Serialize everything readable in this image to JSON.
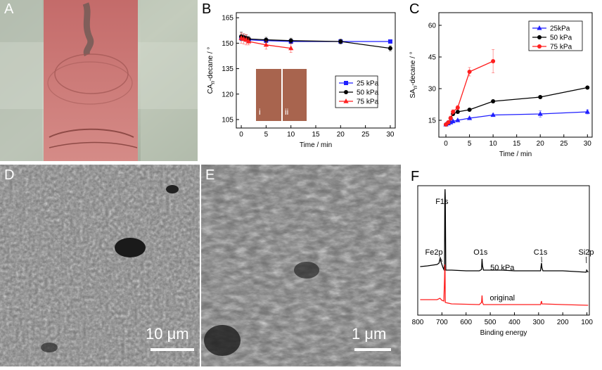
{
  "panels": {
    "a": {
      "label": "A"
    },
    "b": {
      "label": "B"
    },
    "c": {
      "label": "C"
    },
    "d": {
      "label": "D",
      "scale": "10 μm"
    },
    "e": {
      "label": "E",
      "scale": "1 μm"
    },
    "f": {
      "label": "F"
    }
  },
  "colors": {
    "s25": "#1f1fff",
    "s50": "#000000",
    "s75": "#ff1f1f",
    "orig": "#ff1f1f",
    "strip": "#c9716c",
    "inset": "#a8644e"
  },
  "chart_data": [
    {
      "id": "B",
      "type": "line",
      "xlabel": "Time / min",
      "ylabel_main": "CA",
      "ylabel_sub": "n",
      "ylabel_rest": "-decane",
      "ylabel_unit": " / °",
      "xlim": [
        -1,
        31
      ],
      "ylim": [
        100,
        168
      ],
      "xticks": [
        0,
        5,
        10,
        15,
        20,
        25,
        30
      ],
      "yticks": [
        105,
        120,
        135,
        150,
        165
      ],
      "legend_position": "right",
      "inset_labels": [
        "i",
        "ii"
      ],
      "series": [
        {
          "name": "25 kPa",
          "color": "#1f1fff",
          "marker": "square",
          "x": [
            0,
            0.5,
            1,
            1.5,
            5,
            10,
            20,
            30
          ],
          "y": [
            153,
            153,
            152.5,
            152,
            151.5,
            151,
            151,
            151
          ],
          "err": [
            1.5,
            1.5,
            1.5,
            1,
            1,
            1,
            1,
            1
          ]
        },
        {
          "name": "50 kPa",
          "color": "#000000",
          "marker": "circle",
          "x": [
            0,
            0.5,
            1,
            1.5,
            5,
            10,
            20,
            30
          ],
          "y": [
            154,
            153.5,
            153,
            152.5,
            152,
            151.5,
            151,
            147
          ],
          "err": [
            2.5,
            2,
            2,
            1.5,
            1.5,
            1.5,
            1.5,
            1.5
          ]
        },
        {
          "name": "75 kPa",
          "color": "#ff1f1f",
          "marker": "triangle",
          "x": [
            0,
            0.5,
            1,
            1.5,
            5,
            10
          ],
          "y": [
            153,
            152.5,
            152,
            151,
            149,
            147
          ],
          "err": [
            3,
            3,
            3,
            2,
            2.5,
            2.5
          ]
        }
      ]
    },
    {
      "id": "C",
      "type": "line",
      "xlabel": "Time / min",
      "ylabel_main": "SA",
      "ylabel_sub": "n",
      "ylabel_rest": "-decane",
      "ylabel_unit": " / °",
      "xlim": [
        -1.5,
        31
      ],
      "ylim": [
        7,
        66
      ],
      "xticks": [
        0,
        5,
        10,
        15,
        20,
        25,
        30
      ],
      "yticks": [
        15,
        30,
        45,
        60
      ],
      "legend_position": "top-right",
      "series": [
        {
          "name": "25kPa",
          "color": "#1f1fff",
          "marker": "triangle",
          "x": [
            0,
            0.5,
            1,
            1.5,
            2.5,
            5,
            10,
            20,
            30
          ],
          "y": [
            13,
            13.5,
            14,
            14.5,
            15,
            16,
            17.5,
            18,
            19
          ],
          "err": [
            0.5,
            0.5,
            0.5,
            0.5,
            0.5,
            0.5,
            0.5,
            1.5,
            1
          ]
        },
        {
          "name": "50  kPa",
          "color": "#000000",
          "marker": "circle",
          "x": [
            0,
            0.5,
            1,
            1.5,
            2.5,
            5,
            10,
            20,
            30
          ],
          "y": [
            13,
            14,
            16,
            18,
            19,
            20,
            24,
            26,
            30.5
          ],
          "err": [
            0.5,
            0.5,
            0.5,
            0.5,
            0.5,
            0.5,
            0.5,
            0.5,
            0.5
          ]
        },
        {
          "name": "75  kPa",
          "color": "#ff1f1f",
          "marker": "circle",
          "x": [
            0,
            0.5,
            1,
            1.5,
            2.5,
            5,
            10
          ],
          "y": [
            13,
            14,
            16,
            19,
            21,
            38,
            43
          ],
          "err": [
            0.5,
            0.5,
            1,
            1,
            1,
            2,
            5.5
          ]
        }
      ]
    },
    {
      "id": "F",
      "type": "line",
      "xlabel": "Binding energy",
      "xlim": [
        800,
        90
      ],
      "xticks": [
        800,
        700,
        600,
        500,
        400,
        300,
        200,
        100
      ],
      "annotations": [
        "F1s",
        "Fe2p",
        "O1s",
        "C1s",
        "Si2p",
        "50 kPa",
        "original"
      ],
      "series": [
        {
          "name": "50 kPa",
          "color": "#000000"
        },
        {
          "name": "original",
          "color": "#ff1f1f"
        }
      ]
    }
  ]
}
